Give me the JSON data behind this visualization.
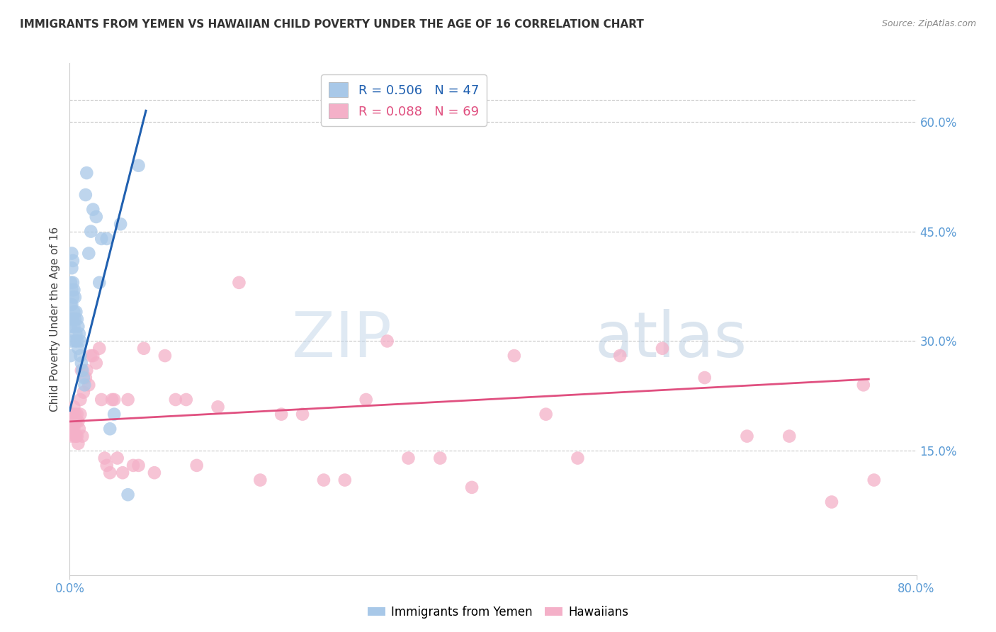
{
  "title": "IMMIGRANTS FROM YEMEN VS HAWAIIAN CHILD POVERTY UNDER THE AGE OF 16 CORRELATION CHART",
  "source": "Source: ZipAtlas.com",
  "ylabel": "Child Poverty Under the Age of 16",
  "right_yticks": [
    0.15,
    0.3,
    0.45,
    0.6
  ],
  "right_ytick_labels": [
    "15.0%",
    "30.0%",
    "45.0%",
    "60.0%"
  ],
  "xlim": [
    0.0,
    0.8
  ],
  "ylim": [
    -0.02,
    0.68
  ],
  "blue_color": "#a8c8e8",
  "pink_color": "#f4b0c8",
  "blue_line_color": "#2060b0",
  "pink_line_color": "#e05080",
  "legend_R1": "R = 0.506",
  "legend_N1": "N = 47",
  "legend_R2": "R = 0.088",
  "legend_N2": "N = 69",
  "axis_color": "#5b9bd5",
  "grid_color": "#c8c8c8",
  "blue_x": [
    0.001,
    0.001,
    0.001,
    0.001,
    0.001,
    0.002,
    0.002,
    0.002,
    0.002,
    0.002,
    0.003,
    0.003,
    0.003,
    0.003,
    0.004,
    0.004,
    0.004,
    0.005,
    0.005,
    0.005,
    0.006,
    0.006,
    0.007,
    0.007,
    0.008,
    0.008,
    0.009,
    0.01,
    0.01,
    0.011,
    0.012,
    0.013,
    0.014,
    0.015,
    0.016,
    0.018,
    0.02,
    0.022,
    0.025,
    0.028,
    0.03,
    0.035,
    0.038,
    0.042,
    0.048,
    0.055,
    0.065
  ],
  "blue_y": [
    0.38,
    0.35,
    0.32,
    0.3,
    0.28,
    0.42,
    0.4,
    0.37,
    0.35,
    0.33,
    0.41,
    0.38,
    0.36,
    0.33,
    0.37,
    0.34,
    0.32,
    0.36,
    0.33,
    0.3,
    0.34,
    0.31,
    0.33,
    0.3,
    0.32,
    0.29,
    0.31,
    0.3,
    0.28,
    0.27,
    0.26,
    0.25,
    0.24,
    0.5,
    0.53,
    0.42,
    0.45,
    0.48,
    0.47,
    0.38,
    0.44,
    0.44,
    0.18,
    0.2,
    0.46,
    0.09,
    0.54
  ],
  "pink_x": [
    0.001,
    0.001,
    0.002,
    0.002,
    0.003,
    0.003,
    0.004,
    0.004,
    0.005,
    0.005,
    0.006,
    0.006,
    0.007,
    0.007,
    0.008,
    0.008,
    0.009,
    0.01,
    0.01,
    0.011,
    0.012,
    0.013,
    0.015,
    0.016,
    0.018,
    0.02,
    0.022,
    0.025,
    0.028,
    0.03,
    0.033,
    0.035,
    0.038,
    0.04,
    0.042,
    0.045,
    0.05,
    0.055,
    0.06,
    0.065,
    0.07,
    0.08,
    0.09,
    0.1,
    0.11,
    0.12,
    0.14,
    0.16,
    0.18,
    0.2,
    0.22,
    0.24,
    0.26,
    0.28,
    0.3,
    0.32,
    0.35,
    0.38,
    0.42,
    0.45,
    0.48,
    0.52,
    0.56,
    0.6,
    0.64,
    0.68,
    0.72,
    0.76,
    0.75
  ],
  "pink_y": [
    0.2,
    0.18,
    0.19,
    0.17,
    0.2,
    0.18,
    0.21,
    0.18,
    0.2,
    0.17,
    0.19,
    0.17,
    0.2,
    0.17,
    0.19,
    0.16,
    0.18,
    0.22,
    0.2,
    0.26,
    0.17,
    0.23,
    0.25,
    0.26,
    0.24,
    0.28,
    0.28,
    0.27,
    0.29,
    0.22,
    0.14,
    0.13,
    0.12,
    0.22,
    0.22,
    0.14,
    0.12,
    0.22,
    0.13,
    0.13,
    0.29,
    0.12,
    0.28,
    0.22,
    0.22,
    0.13,
    0.21,
    0.38,
    0.11,
    0.2,
    0.2,
    0.11,
    0.11,
    0.22,
    0.3,
    0.14,
    0.14,
    0.1,
    0.28,
    0.2,
    0.14,
    0.28,
    0.29,
    0.25,
    0.17,
    0.17,
    0.08,
    0.11,
    0.24
  ],
  "blue_trend_x": [
    0.0,
    0.072
  ],
  "blue_trend_y": [
    0.205,
    0.615
  ],
  "pink_trend_x": [
    0.0,
    0.755
  ],
  "pink_trend_y": [
    0.19,
    0.248
  ]
}
